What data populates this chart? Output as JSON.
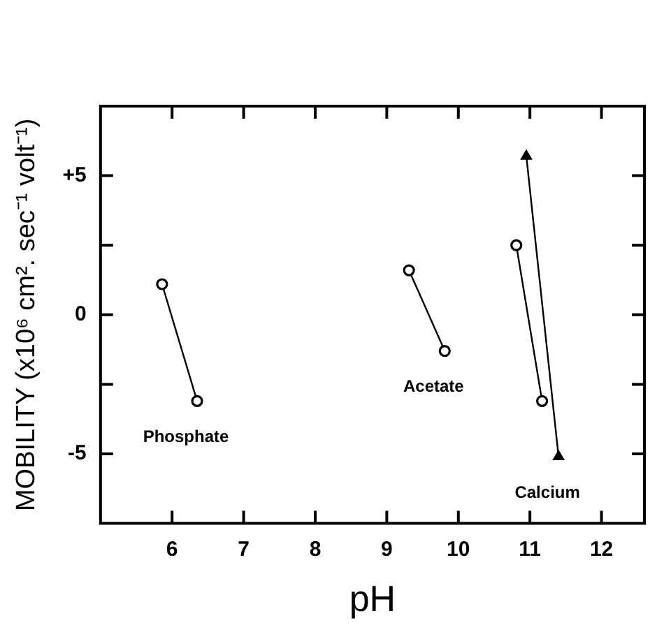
{
  "chart_data": {
    "type": "line",
    "xlabel": "pH",
    "ylabel": "MOBILITY (x10⁶ cm². sec⁻¹ volt⁻¹)",
    "xlim": [
      5,
      12.6
    ],
    "xticks": [
      6,
      7,
      8,
      9,
      10,
      11,
      12
    ],
    "ylim": [
      -7.5,
      7.5
    ],
    "yticks": [
      {
        "value": -5,
        "label": "-5"
      },
      {
        "value": -2.5,
        "label": null
      },
      0,
      {
        "value": 2.5,
        "label": null
      },
      {
        "value": 5,
        "label": "+5"
      }
    ],
    "grid": false,
    "legend": false,
    "line_style": "solid",
    "series": [
      {
        "name": "Phosphate",
        "color": "#000000",
        "marker": "circle",
        "x": [
          5.86,
          6.35
        ],
        "values": [
          1.1,
          -3.1
        ]
      },
      {
        "name": "Acetate",
        "color": "#000000",
        "marker": "circle",
        "x": [
          9.31,
          9.81
        ],
        "values": [
          1.6,
          -1.3
        ]
      },
      {
        "color": "#000000",
        "marker": "circle",
        "x": [
          10.81,
          11.17
        ],
        "values": [
          2.5,
          -3.1
        ]
      },
      {
        "name": "Calcium",
        "color": "#000000",
        "marker": "triangle",
        "x": [
          10.95,
          11.4
        ],
        "values": [
          5.7,
          -5.1
        ]
      }
    ]
  }
}
